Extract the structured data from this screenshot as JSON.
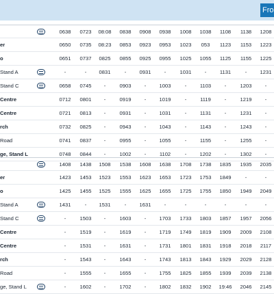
{
  "header": {
    "badge": "Fro"
  },
  "columns": [
    95,
    125,
    153,
    183,
    212,
    241,
    271,
    300,
    329,
    359,
    388
  ],
  "block1": {
    "rows": [
      {
        "stop": "",
        "bold": false,
        "icon": true,
        "times": [
          "0638",
          "0723",
          "08:08",
          "0838",
          "0908",
          "0938",
          "1008",
          "1038",
          "1108",
          "1138",
          "1208"
        ]
      },
      {
        "stop": "er",
        "bold": true,
        "icon": false,
        "times": [
          "0650",
          "0735",
          "08:23",
          "0853",
          "0923",
          "0953",
          "1023",
          "053",
          "1123",
          "1153",
          "1223"
        ]
      },
      {
        "stop": "o",
        "bold": true,
        "icon": false,
        "times": [
          "0651",
          "0737",
          "0825",
          "0855",
          "0925",
          "0955",
          "1025",
          "1055",
          "1125",
          "1155",
          "1225"
        ]
      },
      {
        "stop": "Stand A",
        "bold": false,
        "icon": true,
        "times": [
          "-",
          "-",
          "0831",
          "-",
          "0931",
          "-",
          "1031",
          "-",
          "1131",
          "-",
          "1231"
        ]
      },
      {
        "stop": "Stand C",
        "bold": false,
        "icon": true,
        "times": [
          "0658",
          "0745",
          "-",
          "0903",
          "-",
          "1003",
          "-",
          "1103",
          "-",
          "1203",
          "-"
        ]
      },
      {
        "stop": "Centre",
        "bold": true,
        "icon": false,
        "times": [
          "0712",
          "0801",
          "-",
          "0919",
          "-",
          "1019",
          "-",
          "1119",
          "-",
          "1219",
          "-"
        ]
      },
      {
        "stop": "Centre",
        "bold": true,
        "icon": false,
        "times": [
          "0721",
          "0813",
          "-",
          "0931",
          "-",
          "1031",
          "-",
          "1131",
          "-",
          "1231",
          "-"
        ]
      },
      {
        "stop": "rch",
        "bold": true,
        "icon": false,
        "times": [
          "0732",
          "0825",
          "-",
          "0943",
          "-",
          "1043",
          "-",
          "1143",
          "-",
          "1243",
          "-"
        ]
      },
      {
        "stop": "Road",
        "bold": false,
        "icon": false,
        "times": [
          "0741",
          "0837",
          "-",
          "0955",
          "-",
          "1055",
          "-",
          "1155",
          "-",
          "1255",
          "-"
        ]
      },
      {
        "stop": "ge, Stand L",
        "bold": true,
        "icon": false,
        "times": [
          "0748",
          "0844",
          "-",
          "1002",
          "-",
          "1102",
          "-",
          "1202",
          "-",
          "1302",
          "-"
        ]
      }
    ]
  },
  "block2": {
    "rows": [
      {
        "stop": "",
        "bold": false,
        "icon": true,
        "times": [
          "1408",
          "1438",
          "1508",
          "1538",
          "1608",
          "1638",
          "1708",
          "1738",
          "1835",
          "1935",
          "2035"
        ]
      },
      {
        "stop": "er",
        "bold": true,
        "icon": false,
        "times": [
          "1423",
          "1453",
          "1523",
          "1553",
          "1623",
          "1653",
          "1723",
          "1753",
          "1849",
          "-",
          "-"
        ]
      },
      {
        "stop": "o",
        "bold": true,
        "icon": false,
        "times": [
          "1425",
          "1455",
          "1525",
          "1555",
          "1625",
          "1655",
          "1725",
          "1755",
          "1850",
          "1949",
          "2049"
        ]
      },
      {
        "stop": "Stand A",
        "bold": false,
        "icon": true,
        "times": [
          "1431",
          "-",
          "1531",
          "-",
          "1631",
          "-",
          "-",
          "-",
          "-",
          "-",
          "-"
        ]
      },
      {
        "stop": "Stand C",
        "bold": false,
        "icon": true,
        "times": [
          "-",
          "1503",
          "-",
          "1603",
          "-",
          "1703",
          "1733",
          "1803",
          "1857",
          "1957",
          "2056"
        ]
      },
      {
        "stop": "Centre",
        "bold": true,
        "icon": false,
        "times": [
          "-",
          "1519",
          "-",
          "1619",
          "-",
          "1719",
          "1749",
          "1819",
          "1909",
          "2009",
          "2108"
        ]
      },
      {
        "stop": "Centre",
        "bold": true,
        "icon": false,
        "times": [
          "-",
          "1531",
          "-",
          "1631",
          "-",
          "1731",
          "1801",
          "1831",
          "1918",
          "2018",
          "2117"
        ]
      },
      {
        "stop": "rch",
        "bold": true,
        "icon": false,
        "times": [
          "-",
          "1543",
          "-",
          "1643",
          "-",
          "1743",
          "1813",
          "1843",
          "1929",
          "2029",
          "2128"
        ]
      },
      {
        "stop": "Road",
        "bold": false,
        "icon": false,
        "times": [
          "-",
          "1555",
          "-",
          "1655",
          "-",
          "1755",
          "1825",
          "1855",
          "1939",
          "2039",
          "2138"
        ]
      },
      {
        "stop": "ge, Stand L",
        "bold": false,
        "icon": true,
        "times": [
          "-",
          "1602",
          "-",
          "1702",
          "-",
          "1802",
          "1832",
          "1902",
          "19:46",
          "2046",
          "2145"
        ]
      }
    ]
  }
}
